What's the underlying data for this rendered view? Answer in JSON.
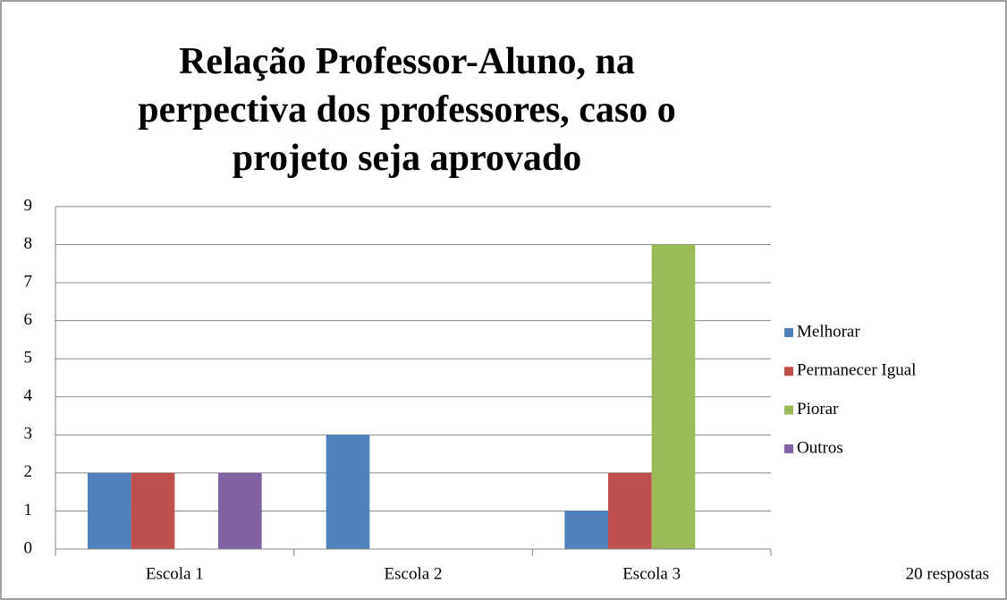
{
  "chart_data": {
    "type": "bar",
    "title": "Relação Professor-Aluno, na perpectiva dos professores, caso o projeto seja aprovado",
    "categories": [
      "Escola 1",
      "Escola 2",
      "Escola 3"
    ],
    "series": [
      {
        "name": "Melhorar",
        "color": "#4f81bd",
        "values": [
          2,
          3,
          1
        ]
      },
      {
        "name": "Permanecer Igual",
        "color": "#c0504d",
        "values": [
          2,
          0,
          2
        ]
      },
      {
        "name": "Piorar",
        "color": "#9bbb59",
        "values": [
          0,
          0,
          8
        ]
      },
      {
        "name": "Outros",
        "color": "#8064a2",
        "values": [
          2,
          0,
          0
        ]
      }
    ],
    "ylim": [
      0,
      9
    ],
    "yticks": [
      0,
      1,
      2,
      3,
      4,
      5,
      6,
      7,
      8,
      9
    ],
    "grid": true,
    "legend": "right",
    "annotation": "20 respostas"
  }
}
